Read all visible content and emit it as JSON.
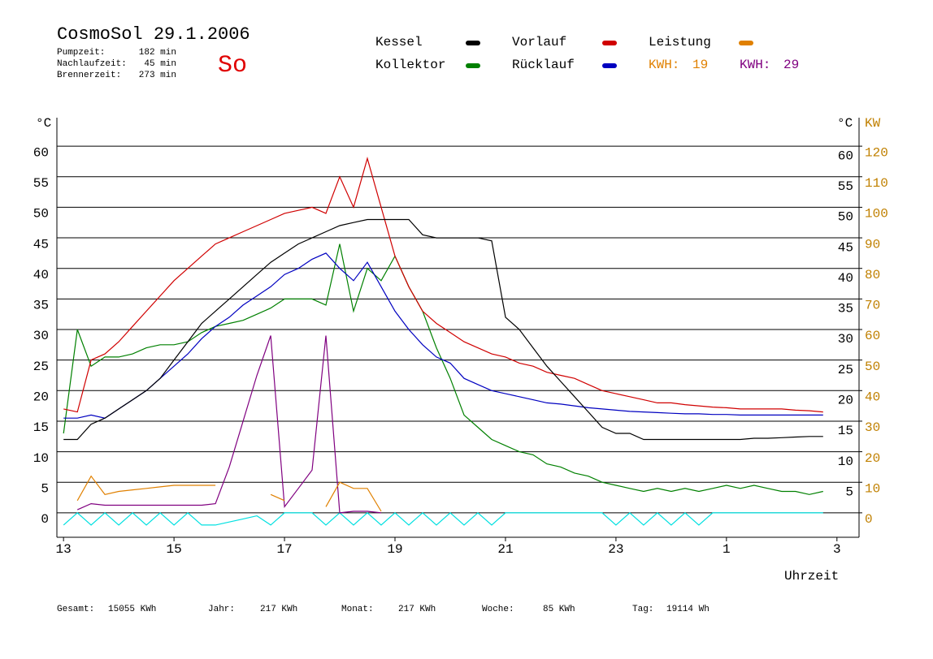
{
  "chart_data": {
    "type": "line",
    "title": "CosmoSol 29.1.2006",
    "day": "So",
    "info": [
      {
        "label": "Pumpzeit:",
        "value": "182 min"
      },
      {
        "label": "Nachlaufzeit:",
        "value": "45 min"
      },
      {
        "label": "Brennerzeit:",
        "value": "273 min"
      }
    ],
    "kwh": [
      {
        "label": "KWH:",
        "value": 19,
        "color": "#e08000"
      },
      {
        "label": "KWH:",
        "value": 29,
        "color": "#800080"
      }
    ],
    "y_label": "°C",
    "y2_label_c": "°C",
    "y2_label": "KW",
    "x_label": "Uhrzeit",
    "footer": [
      {
        "label": "Gesamt:",
        "value": "15055 KWh"
      },
      {
        "label": "Jahr:",
        "value": "217 KWh"
      },
      {
        "label": "Monat:",
        "value": "217 KWh"
      },
      {
        "label": "Woche:",
        "value": "85 KWh"
      },
      {
        "label": "Tag:",
        "value": "19114 Wh"
      }
    ],
    "xlim": [
      12.88,
      27.4
    ],
    "xticks": [
      13,
      15,
      17,
      19,
      21,
      23,
      {
        "value": 25,
        "label": "1"
      },
      {
        "value": 27,
        "label": "3"
      }
    ],
    "ylim": [
      -4,
      64
    ],
    "yticks": [
      0,
      5,
      10,
      15,
      20,
      25,
      30,
      35,
      40,
      45,
      50,
      55,
      60
    ],
    "y2lim": [
      -8,
      128
    ],
    "y2ticks": [
      0,
      10,
      20,
      30,
      40,
      50,
      60,
      70,
      80,
      90,
      100,
      110,
      120
    ],
    "grid": true,
    "x": [
      13,
      13.25,
      13.5,
      13.75,
      14,
      14.25,
      14.5,
      14.75,
      15,
      15.25,
      15.5,
      15.75,
      16,
      16.25,
      16.5,
      16.75,
      17,
      17.25,
      17.5,
      17.75,
      18,
      18.25,
      18.5,
      18.75,
      19,
      19.25,
      19.5,
      19.75,
      20,
      20.25,
      20.5,
      20.75,
      21,
      21.25,
      21.5,
      21.75,
      22,
      22.25,
      22.5,
      22.75,
      23,
      23.25,
      23.5,
      23.75,
      24,
      24.25,
      24.5,
      24.75,
      25,
      25.25,
      25.5,
      25.75,
      26,
      26.25,
      26.5,
      26.75
    ],
    "series": [
      {
        "name": "Kessel",
        "color": "#000000",
        "values": [
          12,
          12,
          14.5,
          15.5,
          17,
          18.5,
          20,
          22,
          25,
          28,
          31,
          33,
          35,
          37,
          39,
          41,
          42.5,
          44,
          45,
          46,
          47,
          47.5,
          48,
          48,
          48,
          48,
          45.5,
          45,
          45,
          45,
          45,
          44.5,
          32,
          30,
          27,
          24,
          21.5,
          19,
          16.5,
          14,
          13,
          13,
          12,
          12,
          12,
          12,
          12,
          12,
          12,
          12,
          12.2,
          12.2,
          12.3,
          12.4,
          12.5,
          12.5
        ]
      },
      {
        "name": "Kollektor",
        "color": "#008000",
        "values": [
          13,
          30,
          24,
          25.5,
          25.5,
          26,
          27,
          27.5,
          27.5,
          28,
          29.5,
          30.5,
          31,
          31.5,
          32.5,
          33.5,
          35,
          35,
          35,
          34,
          44,
          33,
          40,
          38,
          42,
          37,
          33,
          27,
          22,
          16,
          14,
          12,
          11,
          10,
          9.5,
          8,
          7.5,
          6.5,
          6,
          5,
          4.5,
          4,
          3.5,
          4,
          3.5,
          4,
          3.5,
          4,
          4.5,
          4,
          4.5,
          4,
          3.5,
          3.5,
          3,
          3.5
        ]
      },
      {
        "name": "Vorlauf",
        "color": "#d00000",
        "values": [
          17,
          16.5,
          25,
          26,
          28,
          30.5,
          33,
          35.5,
          38,
          40,
          42,
          44,
          45,
          46,
          47,
          48,
          49,
          49.5,
          50,
          49,
          55,
          50,
          58,
          50,
          42,
          37,
          33,
          31,
          29.5,
          28,
          27,
          26,
          25.5,
          24.5,
          24,
          23,
          22.5,
          22,
          21,
          20,
          19.5,
          19,
          18.5,
          18,
          18,
          17.7,
          17.5,
          17.3,
          17.2,
          17,
          17,
          17,
          17,
          16.8,
          16.7,
          16.5
        ]
      },
      {
        "name": "Rücklauf",
        "color": "#0000c0",
        "values": [
          15.5,
          15.5,
          16,
          15.5,
          17,
          18.5,
          20,
          22,
          24,
          26,
          28.5,
          30.5,
          32,
          34,
          35.5,
          37,
          39,
          40,
          41.5,
          42.5,
          40,
          38,
          41,
          37,
          33,
          30,
          27.5,
          25.5,
          24.5,
          22,
          21,
          20,
          19.5,
          19,
          18.5,
          18,
          17.8,
          17.5,
          17.2,
          17,
          16.8,
          16.6,
          16.5,
          16.4,
          16.3,
          16.2,
          16.2,
          16.1,
          16.1,
          16,
          16,
          16,
          16,
          16,
          16,
          16
        ]
      },
      {
        "name": "Leistung",
        "color": "#e08000",
        "axis": "y2",
        "values": [
          null,
          4,
          12,
          6,
          7,
          7.5,
          8,
          8.5,
          9,
          9,
          9,
          9,
          null,
          null,
          null,
          6,
          4,
          null,
          null,
          2,
          10,
          8,
          8,
          0.5,
          null,
          null,
          null,
          null,
          null,
          null,
          null,
          null,
          null,
          null,
          null,
          null,
          null,
          null,
          null,
          null,
          null,
          null,
          null,
          null,
          null,
          null,
          null,
          null,
          null,
          null,
          null,
          null,
          null,
          null,
          null,
          null
        ]
      },
      {
        "color": "#800080",
        "axis": "y2",
        "values": [
          null,
          1,
          3,
          2.5,
          2.5,
          2.5,
          2.5,
          2.5,
          2.5,
          2.5,
          2.5,
          3,
          15,
          30,
          45,
          58,
          2,
          8,
          14,
          58,
          0,
          0.5,
          0.5,
          0,
          null,
          null,
          null,
          null,
          null,
          null,
          null,
          null,
          null,
          null,
          null,
          null,
          null,
          null,
          null,
          null,
          null,
          null,
          null,
          null,
          null,
          null,
          null,
          null,
          null,
          null,
          null,
          null,
          null,
          null,
          null,
          null
        ]
      },
      {
        "color": "#00e0e0",
        "values": [
          -2,
          0,
          -2,
          0,
          -2,
          0,
          -2,
          0,
          -2,
          0,
          -2,
          -2,
          -1.5,
          -1,
          -0.5,
          -2,
          0,
          0,
          0,
          -2,
          0,
          -2,
          0,
          -2,
          0,
          -2,
          0,
          -2,
          0,
          -2,
          0,
          -2,
          0,
          0,
          0,
          0,
          0,
          0,
          0,
          0,
          -2,
          0,
          -2,
          0,
          -2,
          0,
          -2,
          0,
          0,
          0,
          0,
          0,
          0,
          0,
          0,
          0
        ]
      }
    ]
  }
}
